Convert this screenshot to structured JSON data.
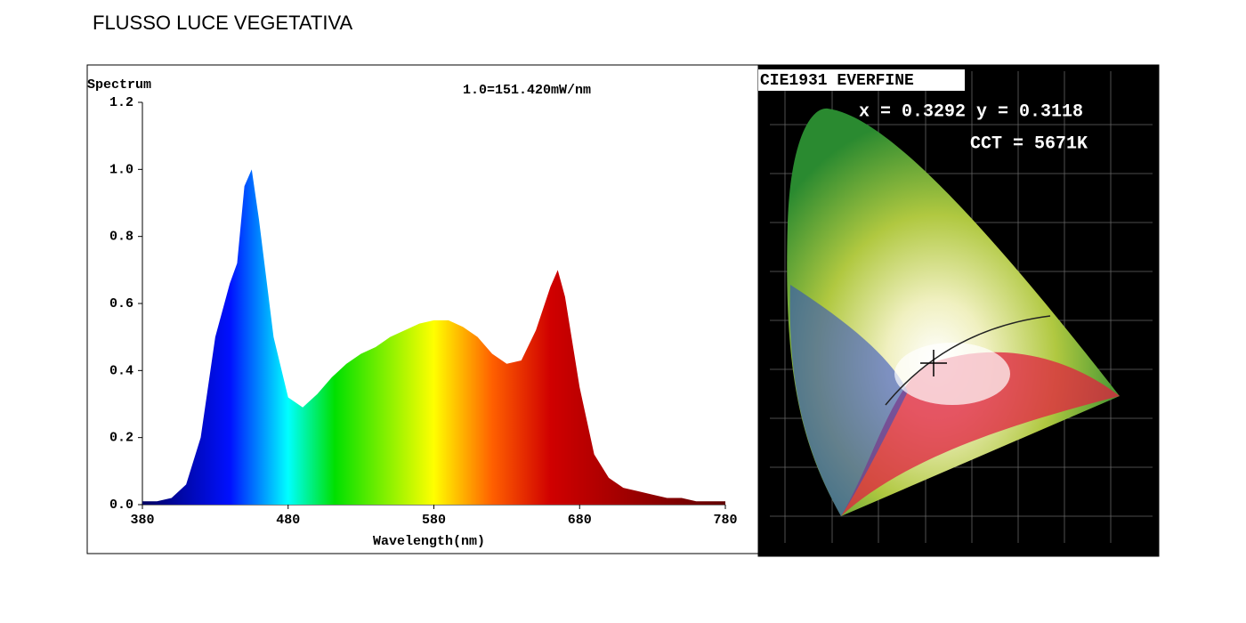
{
  "title": "FLUSSO LUCE VEGETATIVA",
  "chart_data": {
    "type": "area",
    "ylabel": "Spectrum",
    "xlabel": "Wavelength(nm)",
    "annotation": "1.0=151.420mW/nm",
    "x": [
      380,
      390,
      400,
      410,
      420,
      430,
      440,
      445,
      450,
      455,
      460,
      470,
      480,
      490,
      500,
      510,
      520,
      530,
      540,
      550,
      560,
      570,
      580,
      590,
      600,
      610,
      620,
      630,
      640,
      650,
      660,
      665,
      670,
      680,
      690,
      700,
      710,
      720,
      730,
      740,
      750,
      760,
      770,
      780
    ],
    "values": [
      0.01,
      0.01,
      0.02,
      0.06,
      0.2,
      0.5,
      0.66,
      0.72,
      0.95,
      1.0,
      0.85,
      0.5,
      0.32,
      0.29,
      0.33,
      0.38,
      0.42,
      0.45,
      0.47,
      0.5,
      0.52,
      0.54,
      0.55,
      0.55,
      0.53,
      0.5,
      0.45,
      0.42,
      0.43,
      0.52,
      0.65,
      0.7,
      0.62,
      0.35,
      0.15,
      0.08,
      0.05,
      0.04,
      0.03,
      0.02,
      0.02,
      0.01,
      0.01,
      0.01
    ],
    "xlim": [
      380,
      780
    ],
    "ylim": [
      0,
      1.2
    ],
    "xticks": [
      380,
      480,
      580,
      680,
      780
    ],
    "yticks": [
      {
        "value": 0,
        "label": "0.0"
      },
      0.2,
      0.4,
      0.6,
      0.8,
      {
        "value": 1,
        "label": "1.0"
      },
      1.2
    ]
  },
  "cie": {
    "title": "CIE1931 EVERFINE",
    "coords": "x = 0.3292 y = 0.3118",
    "cct": "CCT = 5671K"
  }
}
